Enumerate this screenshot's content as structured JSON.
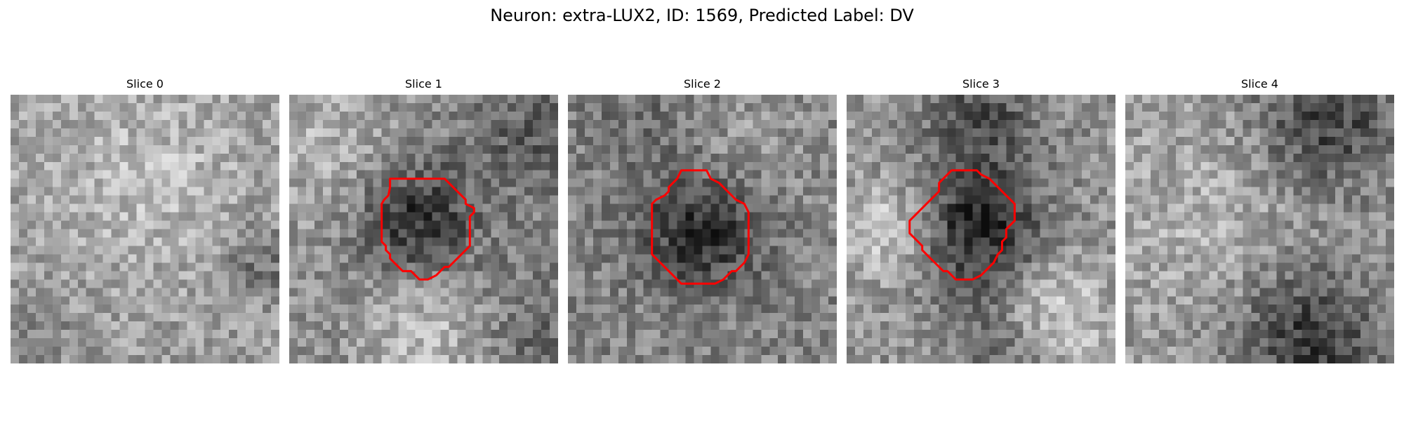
{
  "title": "Neuron: extra-LUX2, ID: 1569, Predicted Label: DV",
  "contour_color": "#ff0000",
  "slices": [
    {
      "label": "Slice 0",
      "has_contour": false
    },
    {
      "label": "Slice 1",
      "has_contour": true
    },
    {
      "label": "Slice 2",
      "has_contour": true
    },
    {
      "label": "Slice 3",
      "has_contour": true
    },
    {
      "label": "Slice 4",
      "has_contour": false
    }
  ]
}
